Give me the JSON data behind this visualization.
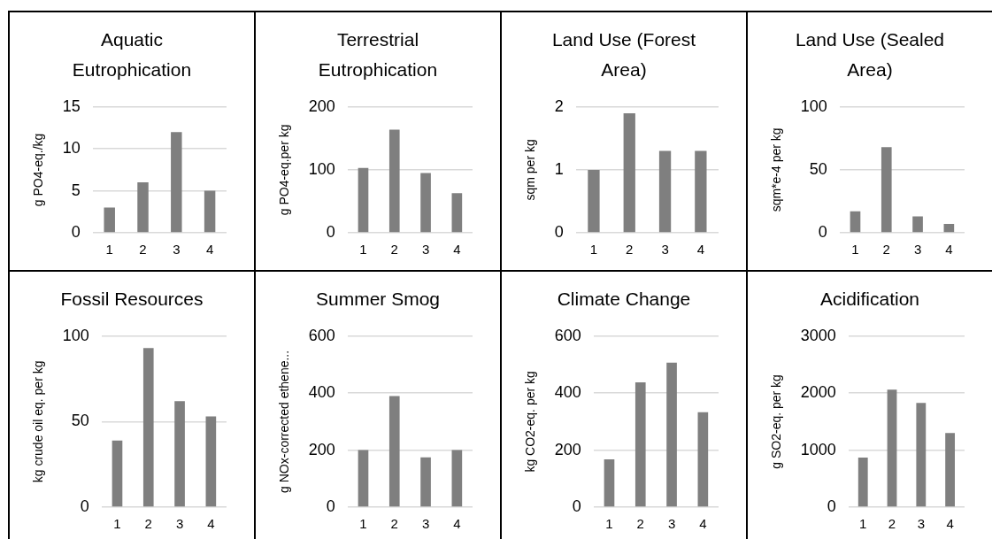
{
  "chart_data": [
    {
      "type": "bar",
      "title": "Aquatic Eutrophication",
      "ylabel": "g PO4-eq./kg",
      "categories": [
        "1",
        "2",
        "3",
        "4"
      ],
      "values": [
        3,
        6,
        12,
        5
      ],
      "color": "#7f7f7f",
      "ylim": [
        0,
        15
      ],
      "yticks": [
        0,
        5,
        10,
        15
      ],
      "grid": "y"
    },
    {
      "type": "bar",
      "title": "Terrestrial Eutrophication",
      "ylabel": "g PO4-eq.per kg",
      "categories": [
        "1",
        "2",
        "3",
        "4"
      ],
      "values": [
        103,
        164,
        95,
        63
      ],
      "color": "#7f7f7f",
      "ylim": [
        0,
        200
      ],
      "yticks": [
        0,
        100,
        200
      ],
      "grid": "y"
    },
    {
      "type": "bar",
      "title": "Land Use (Forest Area)",
      "ylabel": "sqm per kg",
      "categories": [
        "1",
        "2",
        "3",
        "4"
      ],
      "values": [
        1.0,
        1.9,
        1.3,
        1.3
      ],
      "color": "#7f7f7f",
      "ylim": [
        0,
        2
      ],
      "yticks": [
        0,
        1,
        2
      ],
      "grid": "y"
    },
    {
      "type": "bar",
      "title": "Land Use (Sealed Area)",
      "ylabel": "sqm*e-4 per kg",
      "categories": [
        "1",
        "2",
        "3",
        "4"
      ],
      "values": [
        17,
        68,
        13,
        7
      ],
      "color": "#7f7f7f",
      "ylim": [
        0,
        100
      ],
      "yticks": [
        0,
        50,
        100
      ],
      "grid": "y"
    },
    {
      "type": "bar",
      "title": "Fossil Resources",
      "ylabel": "kg crude oil eq. per kg",
      "categories": [
        "1",
        "2",
        "3",
        "4"
      ],
      "values": [
        39,
        93,
        62,
        53
      ],
      "color": "#7f7f7f",
      "ylim": [
        0,
        100
      ],
      "yticks": [
        0,
        50,
        100
      ],
      "grid": "y"
    },
    {
      "type": "bar",
      "title": "Summer Smog",
      "ylabel": "g NOx-corrected ethene...",
      "categories": [
        "1",
        "2",
        "3",
        "4"
      ],
      "values": [
        200,
        390,
        175,
        200
      ],
      "color": "#7f7f7f",
      "ylim": [
        0,
        600
      ],
      "yticks": [
        0,
        200,
        400,
        600
      ],
      "grid": "y"
    },
    {
      "type": "bar",
      "title": "Climate Change",
      "ylabel": "kg CO2-eq. per kg",
      "categories": [
        "1",
        "2",
        "3",
        "4"
      ],
      "values": [
        168,
        438,
        507,
        333
      ],
      "color": "#7f7f7f",
      "ylim": [
        0,
        600
      ],
      "yticks": [
        0,
        200,
        400,
        600
      ],
      "grid": "y"
    },
    {
      "type": "bar",
      "title": "Acidification",
      "ylabel": "g SO2-eq. per kg",
      "categories": [
        "1",
        "2",
        "3",
        "4"
      ],
      "values": [
        870,
        2060,
        1830,
        1300
      ],
      "color": "#7f7f7f",
      "ylim": [
        0,
        3000
      ],
      "yticks": [
        0,
        1000,
        2000,
        3000
      ],
      "grid": "y"
    }
  ]
}
